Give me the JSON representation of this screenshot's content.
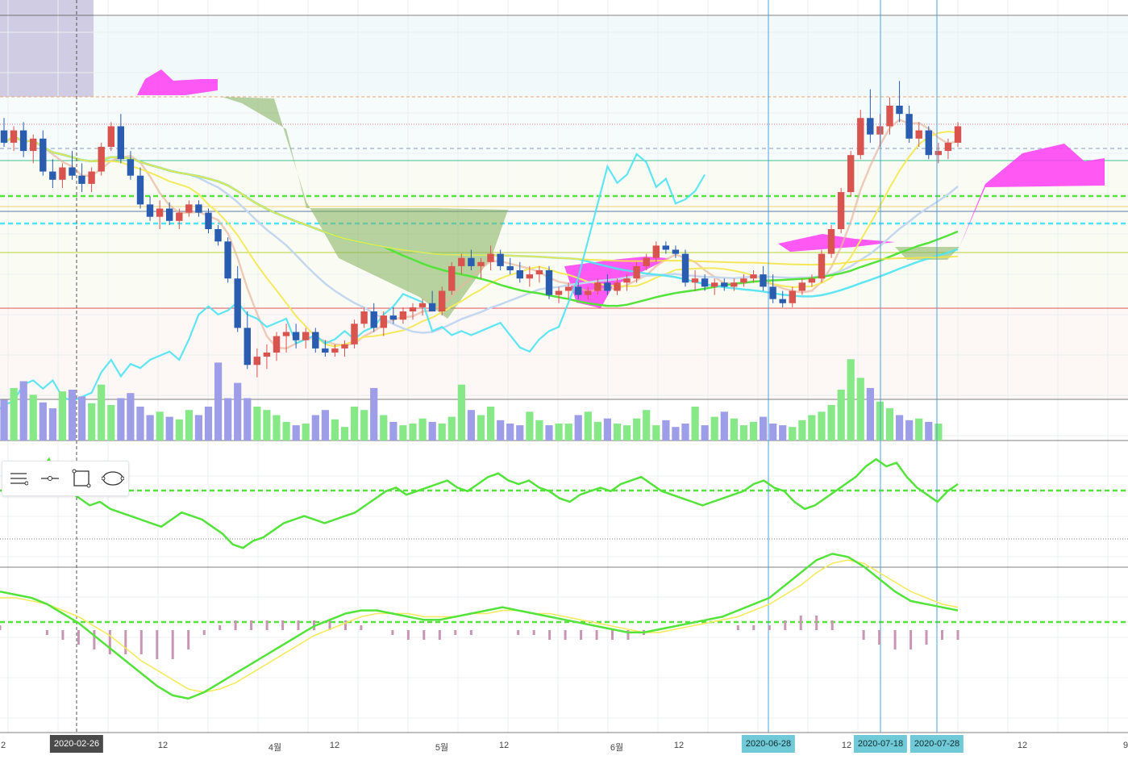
{
  "chart_data": {
    "type": "candlestick",
    "x_axis": {
      "tick_labels": [
        "2",
        "12",
        "4월",
        "12",
        "5월",
        "12",
        "6월",
        "12",
        "12",
        "12",
        "9"
      ],
      "highlighted_dates": [
        "2020-02-26",
        "2020-06-28",
        "2020-07-18",
        "2020-07-28"
      ]
    },
    "candles": [
      {
        "o": 68,
        "h": 74,
        "l": 60,
        "c": 62
      },
      {
        "o": 62,
        "h": 70,
        "l": 58,
        "c": 68
      },
      {
        "o": 68,
        "h": 72,
        "l": 55,
        "c": 58
      },
      {
        "o": 58,
        "h": 66,
        "l": 52,
        "c": 64
      },
      {
        "o": 64,
        "h": 68,
        "l": 46,
        "c": 48
      },
      {
        "o": 48,
        "h": 54,
        "l": 40,
        "c": 44
      },
      {
        "o": 44,
        "h": 52,
        "l": 40,
        "c": 50
      },
      {
        "o": 50,
        "h": 58,
        "l": 44,
        "c": 46
      },
      {
        "o": 46,
        "h": 52,
        "l": 38,
        "c": 42
      },
      {
        "o": 42,
        "h": 50,
        "l": 38,
        "c": 48
      },
      {
        "o": 48,
        "h": 62,
        "l": 46,
        "c": 60
      },
      {
        "o": 60,
        "h": 72,
        "l": 58,
        "c": 70
      },
      {
        "o": 70,
        "h": 76,
        "l": 52,
        "c": 54
      },
      {
        "o": 54,
        "h": 58,
        "l": 44,
        "c": 46
      },
      {
        "o": 46,
        "h": 50,
        "l": 30,
        "c": 32
      },
      {
        "o": 32,
        "h": 36,
        "l": 24,
        "c": 26
      },
      {
        "o": 26,
        "h": 34,
        "l": 20,
        "c": 30
      },
      {
        "o": 30,
        "h": 33,
        "l": 22,
        "c": 24
      },
      {
        "o": 24,
        "h": 30,
        "l": 20,
        "c": 28
      },
      {
        "o": 28,
        "h": 34,
        "l": 26,
        "c": 32
      },
      {
        "o": 32,
        "h": 34,
        "l": 26,
        "c": 28
      },
      {
        "o": 28,
        "h": 30,
        "l": 18,
        "c": 20
      },
      {
        "o": 20,
        "h": 22,
        "l": 12,
        "c": 14
      },
      {
        "o": 14,
        "h": 16,
        "l": -6,
        "c": -4
      },
      {
        "o": -4,
        "h": 2,
        "l": -30,
        "c": -28
      },
      {
        "o": -28,
        "h": -20,
        "l": -48,
        "c": -46
      },
      {
        "o": -46,
        "h": -38,
        "l": -52,
        "c": -42
      },
      {
        "o": -42,
        "h": -36,
        "l": -48,
        "c": -40
      },
      {
        "o": -40,
        "h": -30,
        "l": -44,
        "c": -32
      },
      {
        "o": -32,
        "h": -26,
        "l": -40,
        "c": -30
      },
      {
        "o": -30,
        "h": -26,
        "l": -38,
        "c": -34
      },
      {
        "o": -34,
        "h": -28,
        "l": -38,
        "c": -30
      },
      {
        "o": -30,
        "h": -28,
        "l": -40,
        "c": -38
      },
      {
        "o": -38,
        "h": -34,
        "l": -42,
        "c": -40
      },
      {
        "o": -40,
        "h": -36,
        "l": -42,
        "c": -38
      },
      {
        "o": -38,
        "h": -34,
        "l": -42,
        "c": -36
      },
      {
        "o": -36,
        "h": -24,
        "l": -38,
        "c": -26
      },
      {
        "o": -26,
        "h": -18,
        "l": -28,
        "c": -20
      },
      {
        "o": -20,
        "h": -16,
        "l": -30,
        "c": -28
      },
      {
        "o": -28,
        "h": -20,
        "l": -32,
        "c": -22
      },
      {
        "o": -22,
        "h": -18,
        "l": -26,
        "c": -24
      },
      {
        "o": -24,
        "h": -18,
        "l": -26,
        "c": -20
      },
      {
        "o": -20,
        "h": -16,
        "l": -24,
        "c": -18
      },
      {
        "o": -18,
        "h": -14,
        "l": -22,
        "c": -16
      },
      {
        "o": -16,
        "h": -10,
        "l": -20,
        "c": -20
      },
      {
        "o": -20,
        "h": -8,
        "l": -22,
        "c": -10
      },
      {
        "o": -10,
        "h": 4,
        "l": -12,
        "c": 2
      },
      {
        "o": 2,
        "h": 8,
        "l": -2,
        "c": 6
      },
      {
        "o": 6,
        "h": 10,
        "l": 0,
        "c": 2
      },
      {
        "o": 2,
        "h": 6,
        "l": -4,
        "c": 4
      },
      {
        "o": 4,
        "h": 12,
        "l": 0,
        "c": 8
      },
      {
        "o": 8,
        "h": 10,
        "l": 0,
        "c": 2
      },
      {
        "o": 2,
        "h": 6,
        "l": -2,
        "c": 0
      },
      {
        "o": 0,
        "h": 4,
        "l": -6,
        "c": -4
      },
      {
        "o": -4,
        "h": 2,
        "l": -8,
        "c": -2
      },
      {
        "o": -2,
        "h": 2,
        "l": -6,
        "c": 0
      },
      {
        "o": 0,
        "h": 2,
        "l": -14,
        "c": -12
      },
      {
        "o": -12,
        "h": -8,
        "l": -16,
        "c": -10
      },
      {
        "o": -10,
        "h": -6,
        "l": -14,
        "c": -8
      },
      {
        "o": -8,
        "h": -6,
        "l": -14,
        "c": -12
      },
      {
        "o": -12,
        "h": -8,
        "l": -14,
        "c": -10
      },
      {
        "o": -10,
        "h": -4,
        "l": -12,
        "c": -6
      },
      {
        "o": -6,
        "h": -2,
        "l": -12,
        "c": -10
      },
      {
        "o": -10,
        "h": -4,
        "l": -12,
        "c": -6
      },
      {
        "o": -6,
        "h": -2,
        "l": -10,
        "c": -4
      },
      {
        "o": -4,
        "h": 4,
        "l": -6,
        "c": 2
      },
      {
        "o": 2,
        "h": 8,
        "l": 0,
        "c": 6
      },
      {
        "o": 6,
        "h": 14,
        "l": 4,
        "c": 12
      },
      {
        "o": 12,
        "h": 14,
        "l": 8,
        "c": 10
      },
      {
        "o": 10,
        "h": 12,
        "l": 6,
        "c": 8
      },
      {
        "o": 8,
        "h": 10,
        "l": -8,
        "c": -6
      },
      {
        "o": -6,
        "h": 0,
        "l": -10,
        "c": -4
      },
      {
        "o": -4,
        "h": -2,
        "l": -10,
        "c": -8
      },
      {
        "o": -8,
        "h": -4,
        "l": -12,
        "c": -6
      },
      {
        "o": -6,
        "h": -4,
        "l": -10,
        "c": -8
      },
      {
        "o": -8,
        "h": -4,
        "l": -10,
        "c": -6
      },
      {
        "o": -6,
        "h": -2,
        "l": -8,
        "c": -4
      },
      {
        "o": -4,
        "h": 0,
        "l": -6,
        "c": -2
      },
      {
        "o": -2,
        "h": 2,
        "l": -10,
        "c": -8
      },
      {
        "o": -8,
        "h": -2,
        "l": -16,
        "c": -14
      },
      {
        "o": -14,
        "h": -10,
        "l": -18,
        "c": -16
      },
      {
        "o": -16,
        "h": -8,
        "l": -18,
        "c": -10
      },
      {
        "o": -10,
        "h": -4,
        "l": -12,
        "c": -6
      },
      {
        "o": -6,
        "h": -2,
        "l": -8,
        "c": -4
      },
      {
        "o": -4,
        "h": 10,
        "l": -6,
        "c": 8
      },
      {
        "o": 8,
        "h": 22,
        "l": 6,
        "c": 20
      },
      {
        "o": 20,
        "h": 40,
        "l": 18,
        "c": 38
      },
      {
        "o": 38,
        "h": 58,
        "l": 36,
        "c": 56
      },
      {
        "o": 56,
        "h": 78,
        "l": 54,
        "c": 74
      },
      {
        "o": 74,
        "h": 88,
        "l": 62,
        "c": 66
      },
      {
        "o": 66,
        "h": 76,
        "l": 60,
        "c": 70
      },
      {
        "o": 70,
        "h": 84,
        "l": 66,
        "c": 80
      },
      {
        "o": 80,
        "h": 92,
        "l": 72,
        "c": 76
      },
      {
        "o": 76,
        "h": 80,
        "l": 62,
        "c": 64
      },
      {
        "o": 64,
        "h": 72,
        "l": 60,
        "c": 68
      },
      {
        "o": 68,
        "h": 70,
        "l": 54,
        "c": 56
      },
      {
        "o": 56,
        "h": 62,
        "l": 52,
        "c": 58
      },
      {
        "o": 58,
        "h": 64,
        "l": 54,
        "c": 62
      },
      {
        "o": 62,
        "h": 72,
        "l": 60,
        "c": 70
      }
    ],
    "volume": [
      48,
      62,
      70,
      54,
      45,
      38,
      58,
      60,
      52,
      44,
      66,
      42,
      50,
      56,
      40,
      30,
      34,
      28,
      25,
      36,
      30,
      40,
      92,
      50,
      68,
      50,
      40,
      36,
      30,
      22,
      18,
      20,
      30,
      36,
      25,
      16,
      40,
      36,
      62,
      30,
      22,
      18,
      20,
      26,
      22,
      20,
      28,
      66,
      36,
      30,
      40,
      24,
      20,
      18,
      34,
      24,
      18,
      20,
      20,
      30,
      34,
      22,
      26,
      20,
      18,
      26,
      36,
      18,
      24,
      16,
      20,
      40,
      18,
      28,
      34,
      26,
      18,
      22,
      28,
      20,
      18,
      16,
      24,
      30,
      34,
      42,
      60,
      96,
      74,
      62,
      46,
      38,
      30,
      24,
      26,
      22,
      20
    ],
    "rsi": [
      68,
      62,
      58,
      66,
      74,
      60,
      56,
      52,
      48,
      50,
      46,
      44,
      42,
      40,
      38,
      36,
      40,
      44,
      42,
      40,
      36,
      32,
      26,
      24,
      28,
      30,
      34,
      38,
      40,
      42,
      40,
      38,
      40,
      42,
      44,
      48,
      52,
      56,
      58,
      54,
      56,
      58,
      60,
      62,
      58,
      56,
      60,
      64,
      66,
      62,
      60,
      62,
      58,
      56,
      52,
      50,
      54,
      56,
      58,
      56,
      60,
      62,
      64,
      60,
      56,
      54,
      52,
      50,
      48,
      50,
      52,
      54,
      56,
      60,
      62,
      58,
      56,
      50,
      46,
      48,
      52,
      56,
      60,
      64,
      70,
      74,
      70,
      72,
      64,
      58,
      54,
      50,
      56,
      60
    ],
    "macd": [
      12,
      11,
      10,
      8,
      5,
      2,
      -2,
      -6,
      -10,
      -14,
      -18,
      -21,
      -22,
      -20,
      -17,
      -14,
      -11,
      -8,
      -5,
      -2,
      1,
      3,
      5,
      6,
      6,
      5,
      4,
      3,
      3,
      4,
      5,
      6,
      7,
      6,
      5,
      4,
      3,
      2,
      1,
      0,
      -1,
      -1,
      0,
      1,
      2,
      3,
      4,
      6,
      8,
      10,
      14,
      18,
      22,
      24,
      23,
      20,
      16,
      12,
      9,
      8,
      7,
      6
    ],
    "macd_signal": [
      10,
      10,
      9,
      8,
      6,
      4,
      1,
      -2,
      -6,
      -10,
      -13,
      -16,
      -19,
      -20,
      -19,
      -17,
      -14,
      -11,
      -8,
      -5,
      -2,
      0,
      2,
      4,
      5,
      5,
      5,
      4,
      4,
      4,
      5,
      5,
      6,
      6,
      5,
      5,
      4,
      3,
      2,
      1,
      0,
      -1,
      -1,
      0,
      1,
      2,
      3,
      4,
      6,
      8,
      11,
      14,
      18,
      21,
      22,
      21,
      18,
      15,
      12,
      10,
      8,
      7
    ],
    "grid": true,
    "legend": "none"
  },
  "toolbar": {
    "icons": [
      "horizontal-lines-icon",
      "point-line-icon",
      "rectangle-icon",
      "ellipse-icon"
    ]
  },
  "colors": {
    "up": "#d9534f",
    "down": "#2a5db0",
    "cloud_bull": "#7fae57",
    "cloud_bear": "#ff3bf2",
    "ma_green": "#54e33a",
    "ma_cyan": "#4fe3f2",
    "ma_yellow": "#f4ea5e",
    "vol_up": "#87e887",
    "vol_down": "#9d9de8",
    "macd_hist": "#c896b4"
  }
}
